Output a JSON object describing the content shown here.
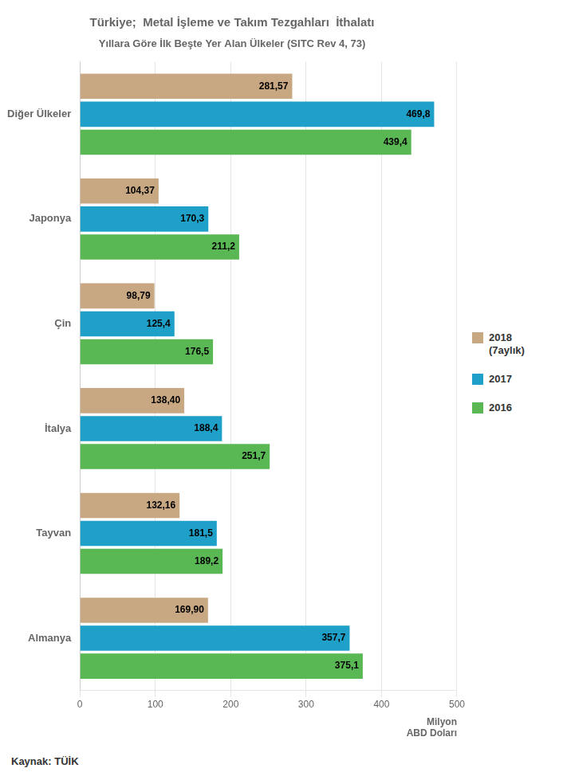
{
  "chart_data": {
    "type": "bar",
    "orientation": "horizontal",
    "title": "Türkiye;  Metal İşleme ve Takım Tezgahları  İthalatı",
    "subtitle": "Yıllara Göre İlk Beşte Yer Alan Ülkeler (SITC Rev 4, 73)",
    "xlabel": "Milyon\nABD Doları",
    "annotations": [
      "Kaynak: TÜİK"
    ],
    "categories": [
      "Almanya",
      "Tayvan",
      "İtalya",
      "Çin",
      "Japonya",
      "Diğer Ülkeler"
    ],
    "series": [
      {
        "name": "2018\n(7aylık)",
        "color": "#C8A882",
        "values": [
          169.9,
          132.16,
          138.4,
          98.79,
          104.37,
          281.57
        ],
        "value_labels": [
          "169,90",
          "132,16",
          "138,40",
          "98,79",
          "104,37",
          "281,57"
        ]
      },
      {
        "name": "2017",
        "color": "#1EA0C8",
        "values": [
          357.7,
          181.5,
          188.4,
          125.4,
          170.3,
          469.8
        ],
        "value_labels": [
          "357,7",
          "181,5",
          "188,4",
          "125,4",
          "170,3",
          "469,8"
        ]
      },
      {
        "name": "2016",
        "color": "#5AB854",
        "values": [
          375.1,
          189.2,
          251.7,
          176.5,
          211.2,
          439.4
        ],
        "value_labels": [
          "375,1",
          "189,2",
          "251,7",
          "176,5",
          "211,2",
          "439,4"
        ]
      }
    ],
    "xlim": [
      0,
      500
    ],
    "xticks": [
      0,
      100,
      200,
      300,
      400,
      500
    ],
    "grid": true,
    "legend": "right",
    "data_labels": true
  }
}
